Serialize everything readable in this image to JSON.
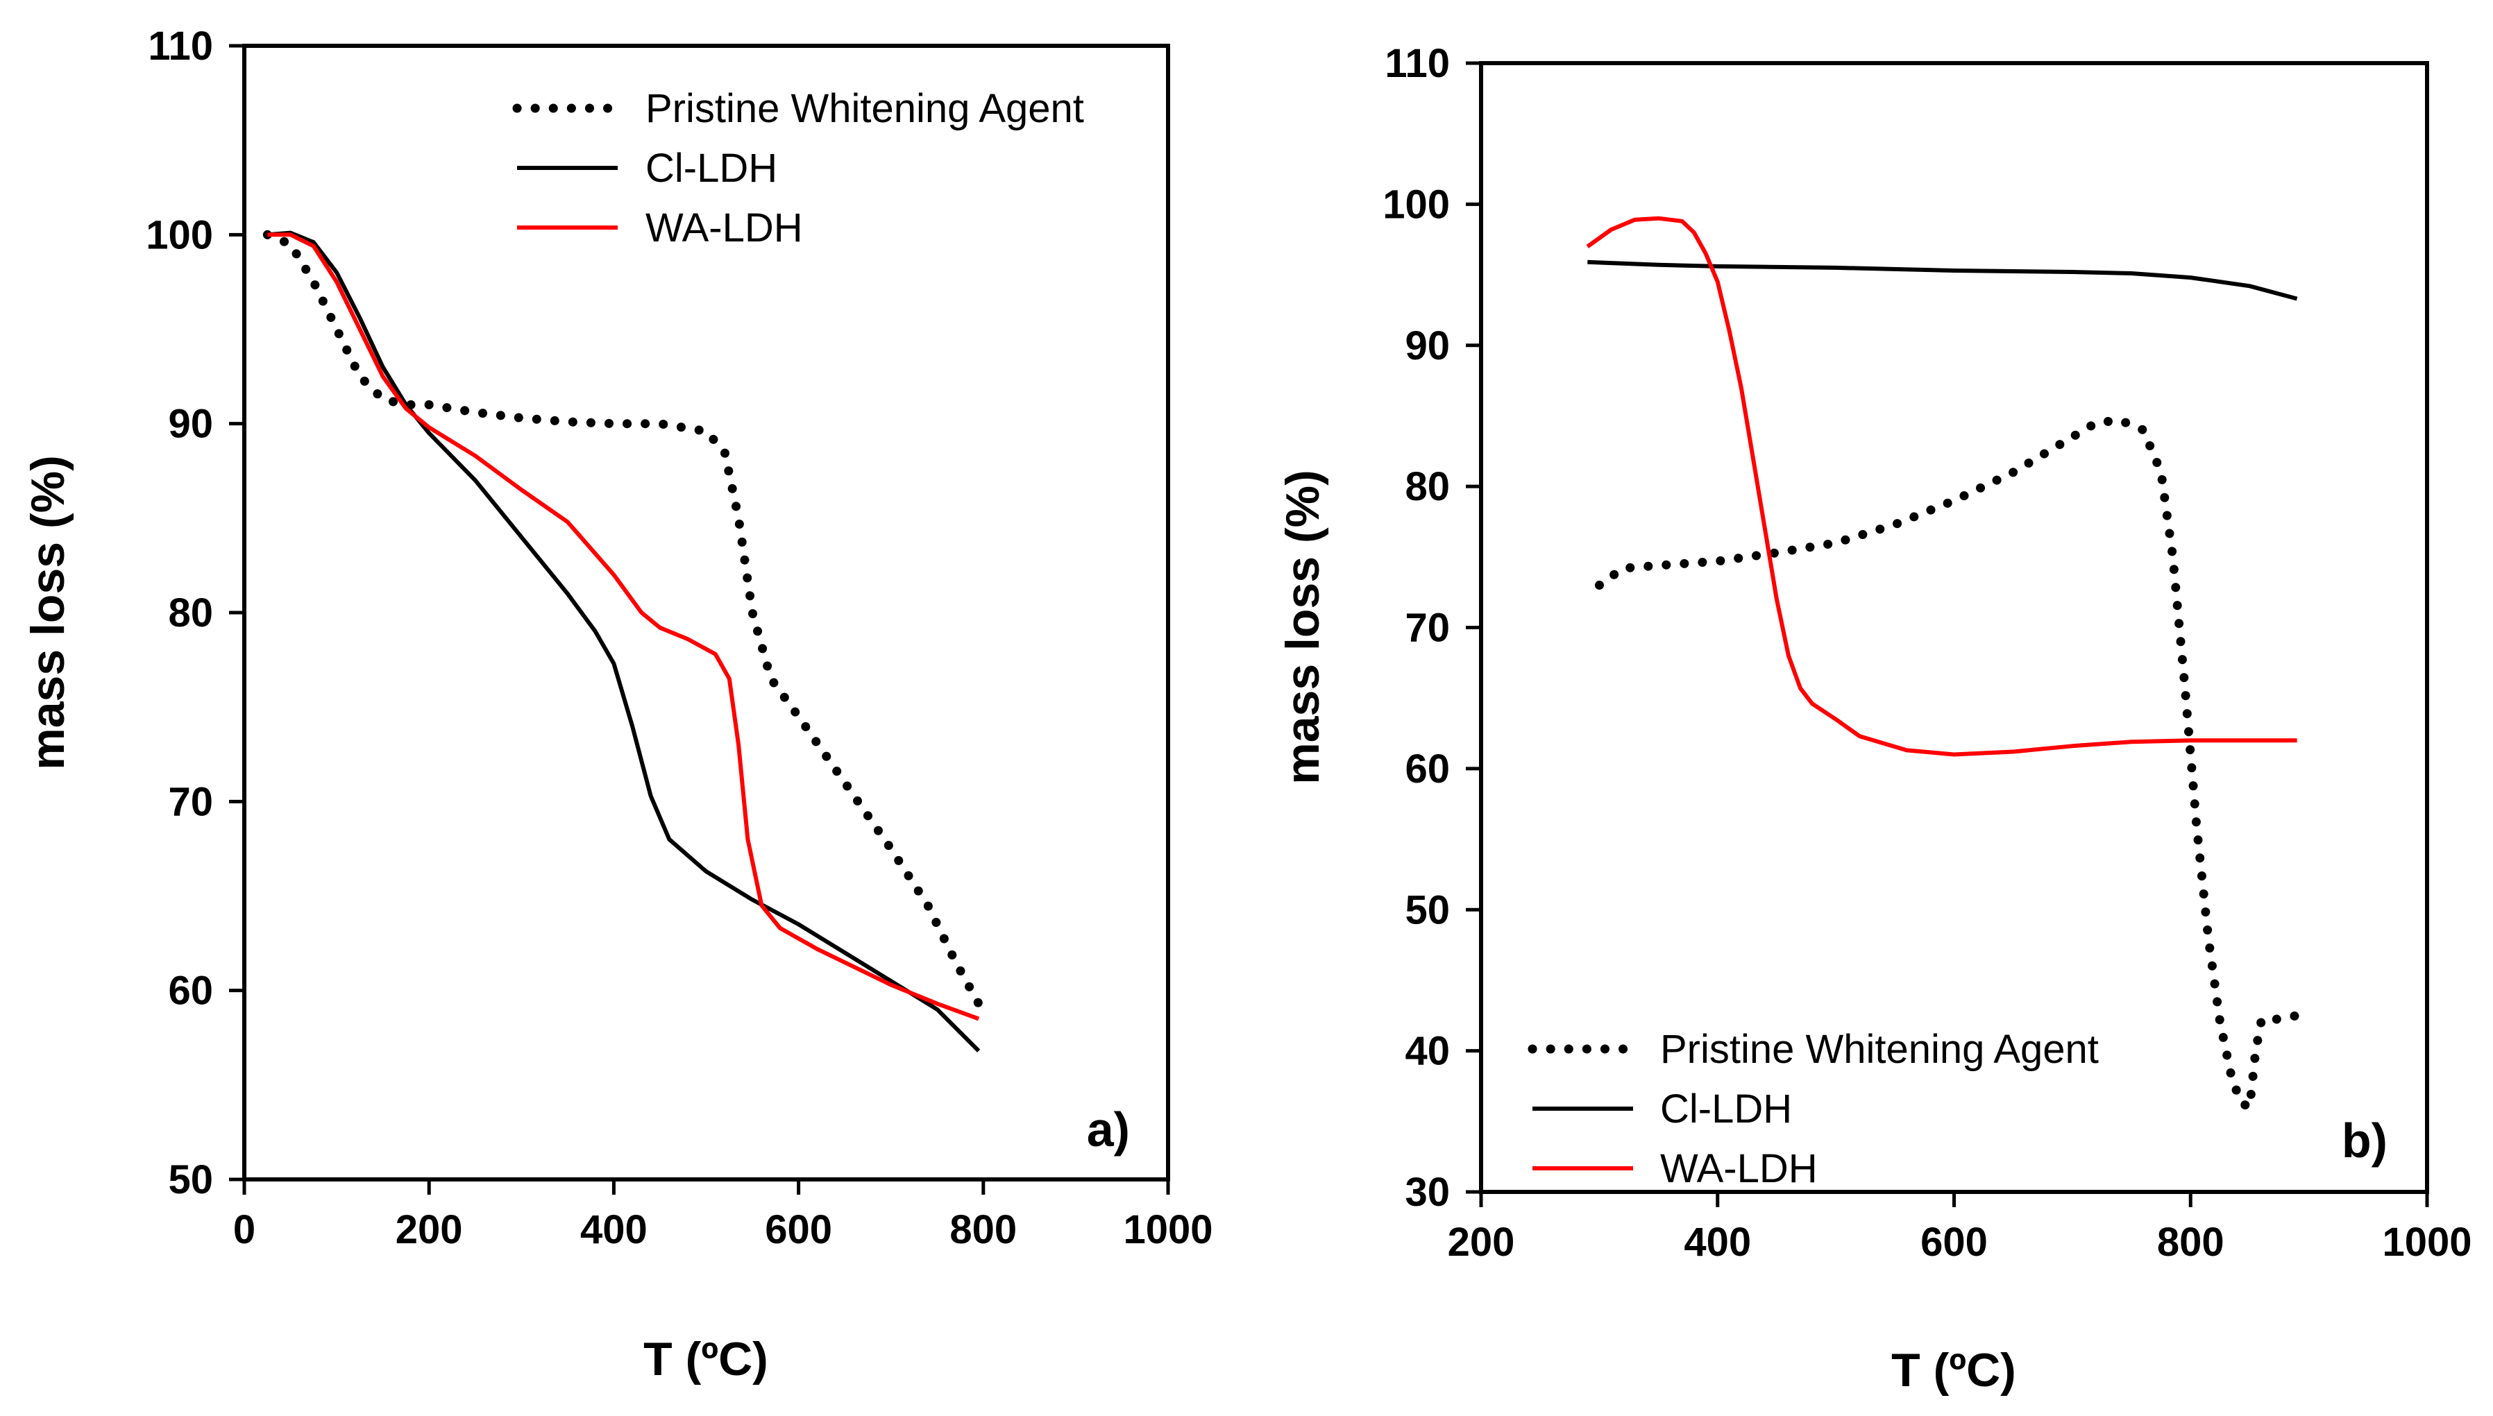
{
  "chart_data": [
    {
      "type": "line",
      "panel_label": "a)",
      "xlabel": "T (ºC)",
      "ylabel": "mass loss (%)",
      "xlim": [
        0,
        1000
      ],
      "ylim": [
        50,
        110
      ],
      "xticks": [
        "0",
        "200",
        "400",
        "600",
        "800",
        "1000"
      ],
      "yticks": [
        "50",
        "60",
        "70",
        "80",
        "90",
        "100",
        "110"
      ],
      "legend_position": "top-right",
      "series": [
        {
          "name": "Pristine Whitening Agent",
          "color": "#000000",
          "style": "dotted",
          "x": [
            25,
            50,
            75,
            100,
            125,
            150,
            175,
            200,
            250,
            300,
            350,
            400,
            450,
            500,
            520,
            535,
            550,
            570,
            600,
            650,
            700,
            740,
            770,
            795
          ],
          "y": [
            100,
            99.5,
            97.5,
            95,
            92.5,
            91.3,
            91,
            91,
            90.6,
            90.3,
            90.1,
            90,
            90,
            89.6,
            88.5,
            85,
            80,
            76.5,
            74.5,
            71,
            67.5,
            64.5,
            61.5,
            59.3
          ]
        },
        {
          "name": "Cl-LDH",
          "color": "#000000",
          "style": "solid",
          "x": [
            25,
            50,
            75,
            100,
            125,
            150,
            175,
            200,
            250,
            300,
            350,
            380,
            400,
            420,
            440,
            460,
            500,
            550,
            600,
            650,
            700,
            750,
            795
          ],
          "y": [
            100,
            100.1,
            99.6,
            98,
            95.6,
            93,
            91,
            89.5,
            87,
            84,
            81,
            79,
            77.3,
            74,
            70.3,
            68,
            66.3,
            64.8,
            63.5,
            62,
            60.5,
            59,
            56.8
          ]
        },
        {
          "name": "WA-LDH",
          "color": "#ff0000",
          "style": "solid",
          "x": [
            25,
            50,
            75,
            100,
            125,
            150,
            175,
            200,
            250,
            300,
            350,
            400,
            430,
            450,
            480,
            510,
            525,
            535,
            545,
            560,
            580,
            620,
            700,
            750,
            795
          ],
          "y": [
            100,
            100,
            99.4,
            97.5,
            95,
            92.5,
            90.8,
            89.8,
            88.3,
            86.5,
            84.8,
            82,
            80,
            79.2,
            78.6,
            77.8,
            76.5,
            73,
            68,
            64.5,
            63.3,
            62.2,
            60.3,
            59.3,
            58.5
          ]
        }
      ]
    },
    {
      "type": "line",
      "panel_label": "b)",
      "xlabel": "T (ºC)",
      "ylabel": "mass loss (%)",
      "xlim": [
        200,
        1000
      ],
      "ylim": [
        30,
        110
      ],
      "xticks": [
        "200",
        "400",
        "600",
        "800",
        "1000"
      ],
      "yticks": [
        "30",
        "40",
        "50",
        "60",
        "70",
        "80",
        "90",
        "100",
        "110"
      ],
      "legend_position": "bottom-left",
      "series": [
        {
          "name": "Pristine Whitening Agent",
          "color": "#000000",
          "style": "dotted",
          "x": [
            300,
            320,
            350,
            400,
            450,
            500,
            550,
            600,
            650,
            700,
            720,
            740,
            760,
            775,
            785,
            795,
            805,
            815,
            825,
            835,
            843,
            850,
            855,
            860,
            870,
            890
          ],
          "y": [
            73,
            74.2,
            74.4,
            74.7,
            75.3,
            76,
            77.3,
            79,
            81,
            83.5,
            84.5,
            84.7,
            84,
            81,
            75,
            66,
            56,
            48,
            42,
            38,
            36.3,
            36,
            40,
            42.2,
            42.2,
            42.5
          ]
        },
        {
          "name": "Cl-LDH",
          "color": "#000000",
          "style": "solid",
          "x": [
            290,
            350,
            400,
            500,
            600,
            700,
            750,
            800,
            850,
            890
          ],
          "y": [
            95.9,
            95.7,
            95.6,
            95.5,
            95.3,
            95.2,
            95.1,
            94.8,
            94.2,
            93.3
          ]
        },
        {
          "name": "WA-LDH",
          "color": "#ff0000",
          "style": "solid",
          "x": [
            290,
            310,
            330,
            350,
            370,
            380,
            390,
            400,
            410,
            420,
            430,
            440,
            450,
            460,
            470,
            480,
            500,
            520,
            560,
            600,
            650,
            700,
            750,
            800,
            850,
            890
          ],
          "y": [
            97,
            98.2,
            98.9,
            99,
            98.8,
            98,
            96.5,
            94.5,
            91,
            87,
            82,
            77,
            72,
            68,
            65.7,
            64.6,
            63.5,
            62.3,
            61.3,
            61,
            61.2,
            61.6,
            61.9,
            62,
            62,
            62
          ]
        }
      ]
    }
  ]
}
